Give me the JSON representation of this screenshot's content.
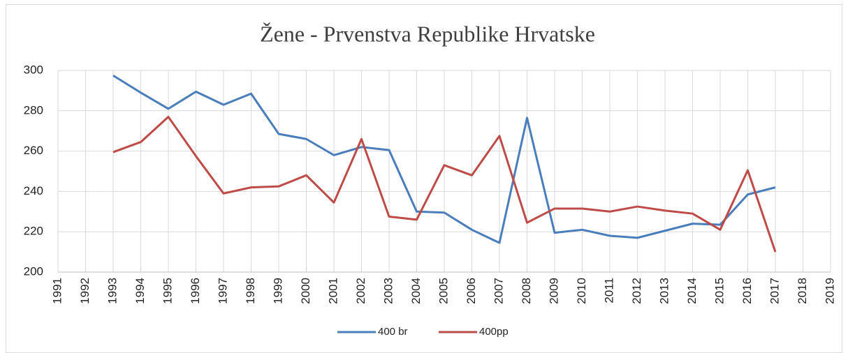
{
  "chart_data": {
    "type": "line",
    "title": "Žene - Prvenstva Republike Hrvatske",
    "categories": [
      "1991",
      "1992",
      "1993",
      "1994",
      "1995",
      "1996",
      "1997",
      "1998",
      "1999",
      "2000",
      "2001",
      "2002",
      "2003",
      "2004",
      "2005",
      "2006",
      "2007",
      "2008",
      "2009",
      "2010",
      "2011",
      "2012",
      "2013",
      "2014",
      "2015",
      "2016",
      "2017",
      "2018",
      "2019"
    ],
    "series": [
      {
        "name": "400 br",
        "color": "#4a7ebb",
        "values": [
          null,
          null,
          297.5,
          289,
          281,
          289.5,
          283,
          288.5,
          268.5,
          266,
          258,
          262,
          260.5,
          230,
          229.5,
          221,
          214.5,
          276.5,
          219.5,
          221,
          218,
          217,
          220.5,
          224,
          223.5,
          238.5,
          242,
          null,
          null
        ]
      },
      {
        "name": "400pp",
        "color": "#be4b48",
        "values": [
          null,
          null,
          259.5,
          264.5,
          277,
          257.5,
          239,
          242,
          242.5,
          248,
          234.5,
          266,
          227.5,
          226,
          253,
          248,
          267.5,
          224.5,
          231.5,
          231.5,
          230,
          232.5,
          230.5,
          229,
          221,
          250.5,
          210,
          null,
          null
        ]
      }
    ],
    "ylim": [
      200,
      300
    ],
    "yticks": [
      200,
      220,
      240,
      260,
      280,
      300
    ],
    "grid": true,
    "legend": "bottom"
  }
}
